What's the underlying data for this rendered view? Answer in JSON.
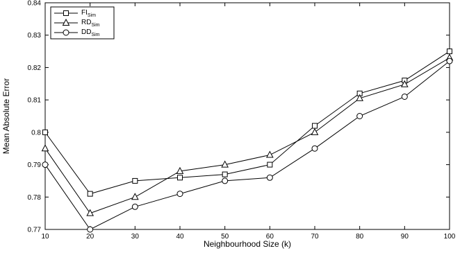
{
  "chart_data": {
    "type": "line",
    "title": "",
    "xlabel": "Neighbourhood Size (k)",
    "ylabel": "Mean Absolute Error",
    "x": [
      10,
      20,
      30,
      40,
      50,
      60,
      70,
      80,
      90,
      100
    ],
    "xlim": [
      10,
      100
    ],
    "ylim": [
      0.77,
      0.84
    ],
    "xticks": [
      "10",
      "20",
      "30",
      "40",
      "50",
      "60",
      "70",
      "80",
      "90",
      "100"
    ],
    "yticks": [
      "0.77",
      "0.78",
      "0.79",
      "0.8",
      "0.81",
      "0.82",
      "0.83",
      "0.84"
    ],
    "grid": false,
    "legend_position": "top-left",
    "series": [
      {
        "name": "FI",
        "name_subscript": "Sim",
        "marker": "square",
        "values": [
          0.8,
          0.781,
          0.785,
          0.786,
          0.787,
          0.79,
          0.802,
          0.812,
          0.816,
          0.825
        ]
      },
      {
        "name": "RD",
        "name_subscript": "Sim",
        "marker": "triangle",
        "values": [
          0.795,
          0.775,
          0.78,
          0.788,
          0.79,
          0.793,
          0.8,
          0.8105,
          0.8148,
          0.823
        ]
      },
      {
        "name": "DD",
        "name_subscript": "Sim",
        "marker": "circle",
        "values": [
          0.79,
          0.77,
          0.777,
          0.781,
          0.785,
          0.786,
          0.795,
          0.805,
          0.811,
          0.822
        ]
      }
    ]
  }
}
